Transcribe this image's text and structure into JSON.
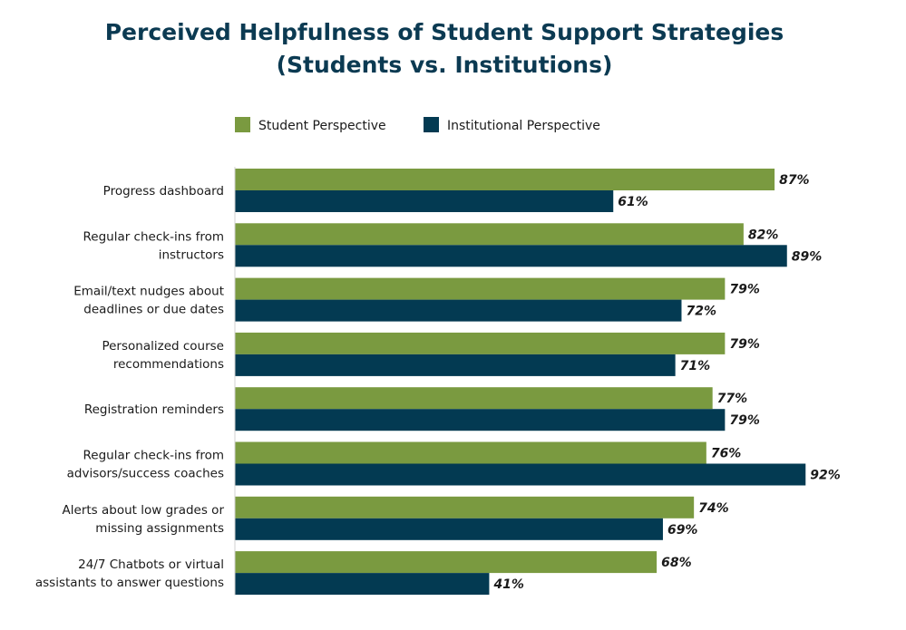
{
  "chart_data": {
    "type": "bar",
    "orientation": "horizontal",
    "title": [
      "Perceived Helpfulness of Student Support Strategies",
      "(Students vs. Institutions)"
    ],
    "legend_position": "top",
    "grid": false,
    "xlim": [
      0,
      100
    ],
    "value_suffix": "%",
    "categories": [
      [
        "Progress dashboard"
      ],
      [
        "Regular check-ins from",
        "instructors"
      ],
      [
        "Email/text nudges about",
        "deadlines or due dates"
      ],
      [
        "Personalized course",
        "recommendations"
      ],
      [
        "Registration reminders"
      ],
      [
        "Regular check-ins from",
        "advisors/success coaches"
      ],
      [
        "Alerts about low grades or",
        "missing assignments"
      ],
      [
        "24/7 Chatbots or virtual",
        "assistants to answer questions"
      ]
    ],
    "series": [
      {
        "name": "Student Perspective",
        "color": "#7a9a40",
        "values": [
          87,
          82,
          79,
          79,
          77,
          76,
          74,
          68
        ]
      },
      {
        "name": "Institutional Perspective",
        "color": "#033a52",
        "values": [
          61,
          89,
          72,
          71,
          79,
          92,
          69,
          41
        ]
      }
    ]
  }
}
